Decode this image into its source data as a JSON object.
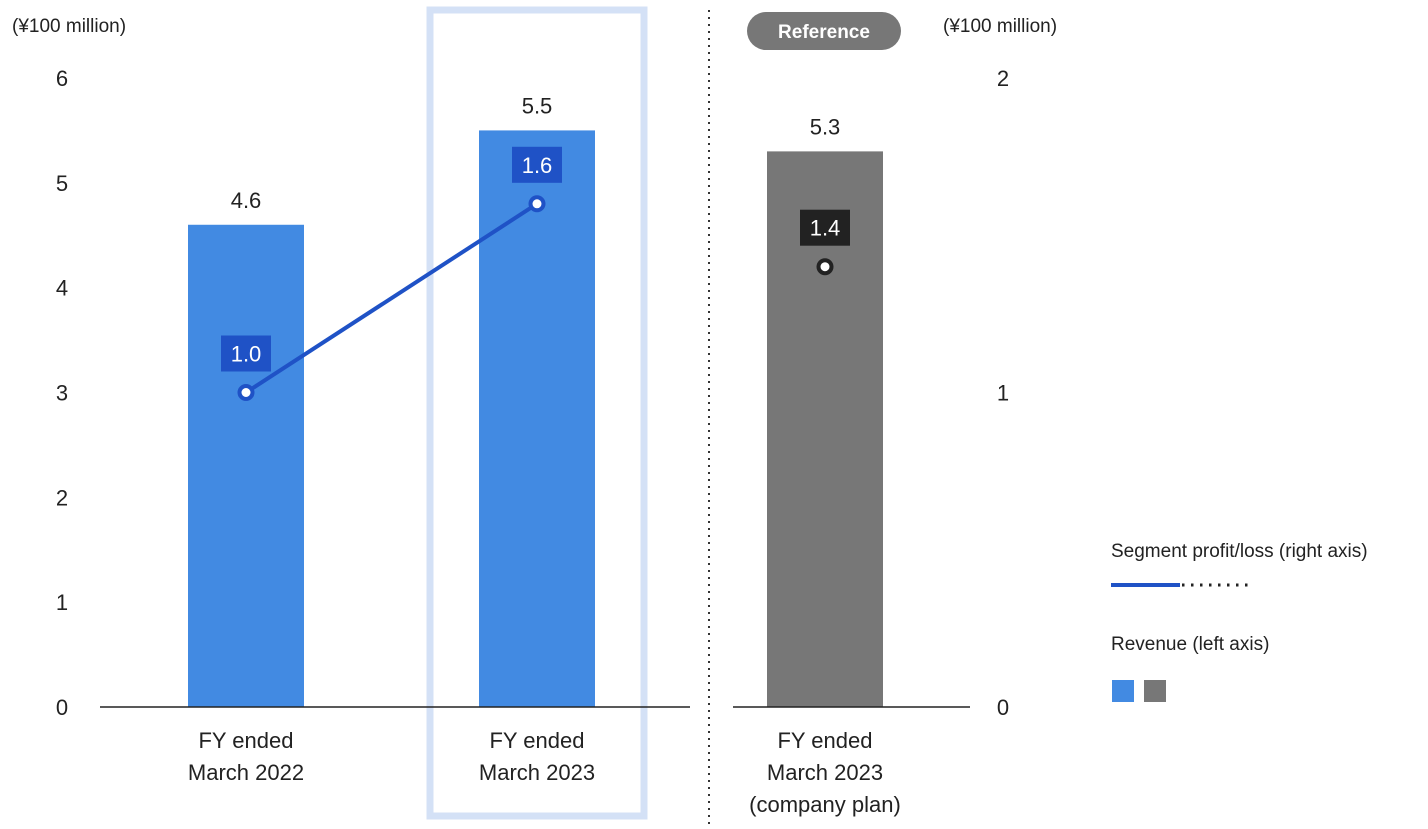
{
  "chart_data": {
    "type": "bar",
    "left_axis": {
      "unit": "(¥100 million)",
      "range": [
        0,
        6
      ],
      "ticks": [
        "0",
        "1",
        "2",
        "3",
        "4",
        "5",
        "6"
      ]
    },
    "right_axis": {
      "unit": "(¥100 million)",
      "range": [
        0,
        2
      ],
      "ticks": [
        "0",
        "1",
        "2"
      ]
    },
    "categories": [
      {
        "lines": [
          "FY ended",
          "March 2022"
        ]
      },
      {
        "lines": [
          "FY ended",
          "March 2023"
        ]
      },
      {
        "lines": [
          "FY ended",
          "March 2023",
          "(company plan)"
        ]
      }
    ],
    "series": [
      {
        "name": "Revenue (left axis)",
        "axis": "left",
        "values": [
          4.6,
          5.5,
          5.3
        ],
        "labels": [
          "4.6",
          "5.5",
          "5.3"
        ]
      },
      {
        "name": "Segment profit/loss (right axis)",
        "axis": "right",
        "values": [
          1.0,
          1.6,
          1.4
        ],
        "labels": [
          "1.0",
          "1.6",
          "1.4"
        ]
      }
    ],
    "reference_badge": "Reference",
    "highlighted_category": 1,
    "colors": {
      "actual_bar": "#428AE2",
      "plan_bar": "#777777",
      "actual_line": "#1F52C6",
      "actual_label_bg": "#1F52C6",
      "plan_label_bg": "#222222",
      "highlight_frame": "#D4E1F6",
      "badge_bg": "#777777",
      "separator": "#333333",
      "axis": "#222222"
    },
    "legend": {
      "profit": "Segment profit/loss (right axis)",
      "revenue": "Revenue (left axis)"
    }
  }
}
